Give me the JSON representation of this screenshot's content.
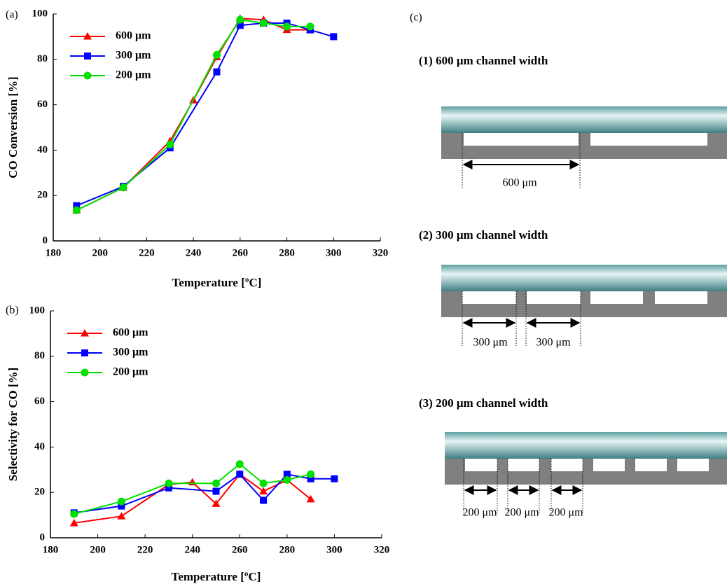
{
  "chart_data": [
    {
      "type": "line",
      "panel": "(a)",
      "xlabel": "Temperature [ºC]",
      "ylabel": "CO Conversion [%]",
      "xlim": [
        180,
        320
      ],
      "xticks": [
        180,
        200,
        220,
        240,
        260,
        280,
        300,
        320
      ],
      "ylim": [
        0,
        100
      ],
      "yticks": [
        0,
        20,
        40,
        60,
        80,
        100
      ],
      "legend": "upper left",
      "series": [
        {
          "name": "600 μm",
          "color": "#ff0000",
          "marker": "triangle",
          "x": [
            190,
            210,
            230,
            240,
            250,
            260,
            270,
            280,
            290
          ],
          "values": [
            13.5,
            23.5,
            44,
            62,
            81,
            98,
            97.5,
            93,
            93
          ]
        },
        {
          "name": "300 μm",
          "color": "#0000ff",
          "marker": "square",
          "x": [
            190,
            210,
            230,
            250,
            260,
            270,
            280,
            290,
            300
          ],
          "values": [
            15.5,
            24,
            41,
            74.5,
            95,
            96,
            96,
            93,
            90
          ]
        },
        {
          "name": "200 μm",
          "color": "#00e000",
          "marker": "circle",
          "x": [
            190,
            210,
            230,
            250,
            260,
            270,
            280,
            290
          ],
          "values": [
            13.5,
            23.5,
            42.5,
            82,
            97.5,
            96,
            94.5,
            94.5
          ]
        }
      ]
    },
    {
      "type": "line",
      "panel": "(b)",
      "xlabel": "Temperature [ºC]",
      "ylabel": "Selectivity for CO [%]",
      "xlim": [
        180,
        320
      ],
      "xticks": [
        180,
        200,
        220,
        240,
        260,
        280,
        300,
        320
      ],
      "ylim": [
        0,
        100
      ],
      "yticks": [
        0,
        20,
        40,
        60,
        80,
        100
      ],
      "legend": "upper left",
      "series": [
        {
          "name": "600 μm",
          "color": "#ff0000",
          "marker": "triangle",
          "x": [
            190,
            210,
            230,
            240,
            250,
            260,
            270,
            280,
            290
          ],
          "values": [
            6.5,
            9.5,
            23.5,
            24.5,
            15,
            28,
            20.5,
            25.5,
            17
          ]
        },
        {
          "name": "300 μm",
          "color": "#0000ff",
          "marker": "square",
          "x": [
            190,
            210,
            230,
            250,
            260,
            270,
            280,
            290,
            300
          ],
          "values": [
            11,
            14,
            22,
            20.5,
            28,
            16.5,
            28,
            26,
            26
          ]
        },
        {
          "name": "200 μm",
          "color": "#00e000",
          "marker": "circle",
          "x": [
            190,
            210,
            230,
            250,
            260,
            270,
            280,
            290
          ],
          "values": [
            10.5,
            16,
            24,
            24,
            32.5,
            24,
            25.5,
            28
          ]
        }
      ]
    }
  ],
  "diagram": {
    "panel": "(c)",
    "sections": [
      {
        "title": "(1) 600 μm channel width",
        "dimensions": [
          "600 μm"
        ]
      },
      {
        "title": "(2) 300 μm channel width",
        "dimensions": [
          "300 μm",
          "300 μm"
        ]
      },
      {
        "title": "(3) 200 μm channel width",
        "dimensions": [
          "200 μm",
          "200 μm",
          "200 μm"
        ]
      }
    ]
  }
}
